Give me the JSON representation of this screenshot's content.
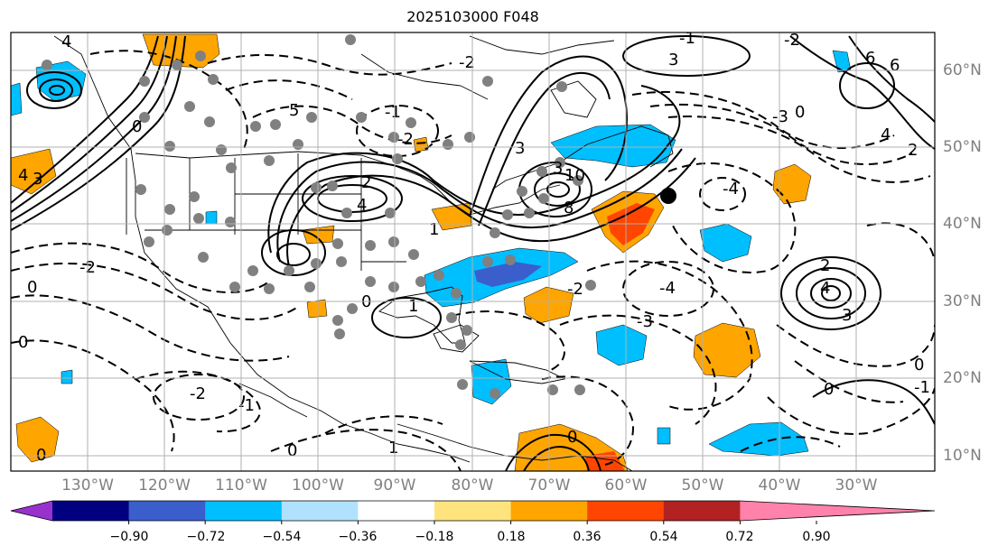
{
  "title": "2025103000 F048",
  "longitude_labels": [
    "130°W",
    "120°W",
    "110°W",
    "100°W",
    "90°W",
    "80°W",
    "70°W",
    "60°W",
    "50°W",
    "40°W",
    "30°W"
  ],
  "latitude_labels": [
    "60°N",
    "50°N",
    "40°N",
    "30°N",
    "20°N",
    "10°N"
  ],
  "colorbar": {
    "tick_labels": [
      "−0.90",
      "−0.72",
      "−0.54",
      "−0.36",
      "−0.18",
      "0.18",
      "0.36",
      "0.54",
      "0.72",
      "0.90"
    ],
    "colors": [
      "#9932cc",
      "#000080",
      "#3a5fcd",
      "#00bfff",
      "#b0e2ff",
      "#ffffff",
      "#ffe47e",
      "#ffa500",
      "#ff4500",
      "#b22222",
      "#ff82ab"
    ]
  },
  "contour_labels": [
    "4",
    "3",
    "2",
    "1",
    "0",
    "-1",
    "-2",
    "-3",
    "-4",
    "10",
    "8",
    "6",
    "5"
  ],
  "fill_colors": {
    "positive_light": "#ffa500",
    "positive_strong": "#ff4500",
    "negative_light": "#00bfff",
    "negative_strong": "#3a5fcd",
    "station_dot": "#808080"
  }
}
